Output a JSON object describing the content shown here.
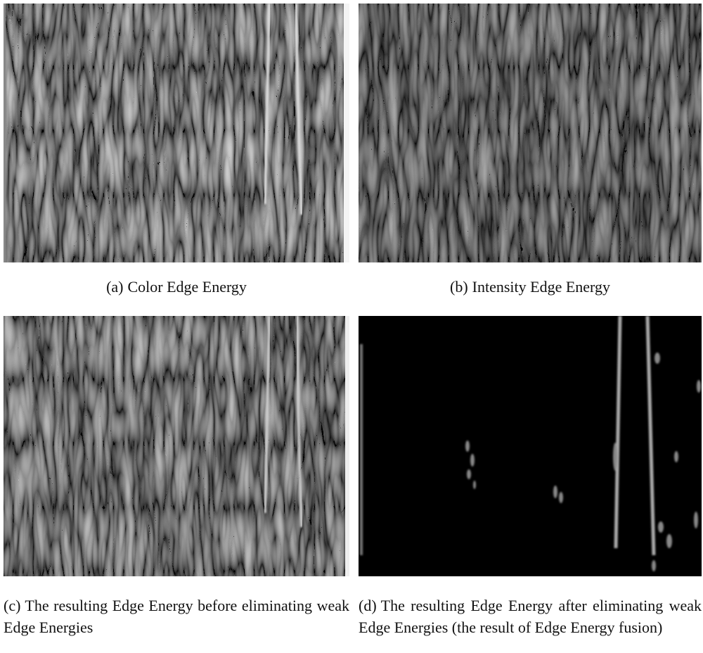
{
  "panels": [
    {
      "label": "(a)",
      "caption": "Color Edge Energy"
    },
    {
      "label": "(b)",
      "caption": "Intensity Edge Energy"
    },
    {
      "label": "(c)",
      "caption": "The resulting Edge Energy before eliminating weak Edge Energies"
    },
    {
      "label": "(d)",
      "caption": "The resulting Edge Energy after eliminating weak Edge Energies (the result of Edge Energy fusion)"
    }
  ]
}
